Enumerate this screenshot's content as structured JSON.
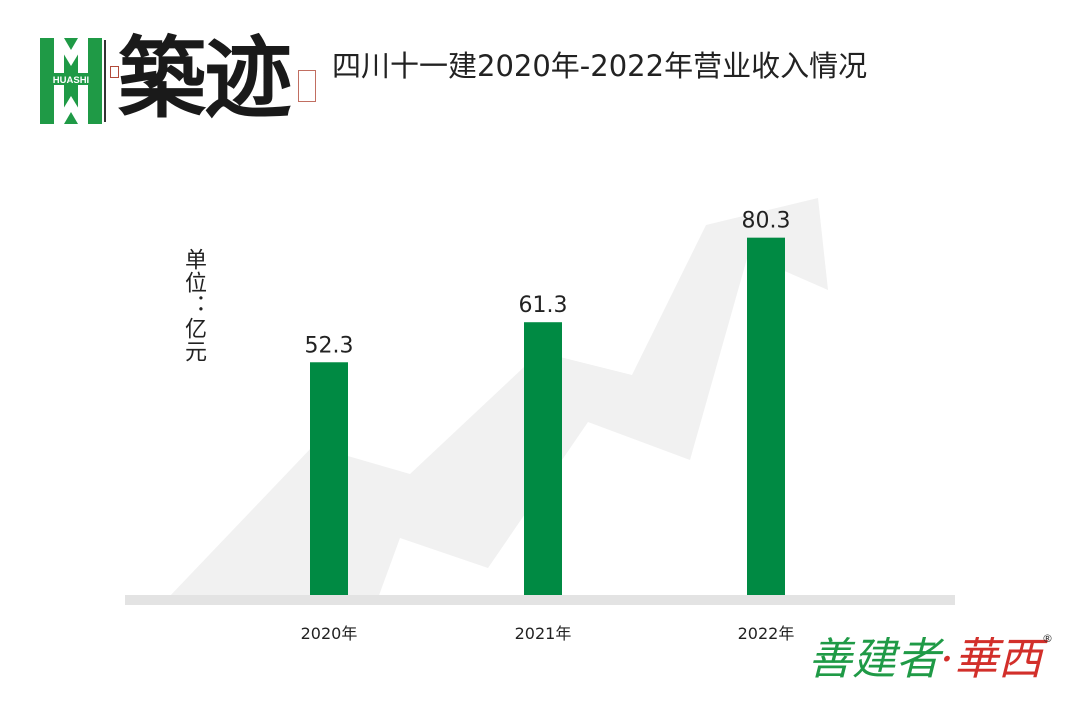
{
  "brand": {
    "logo_text": "HUASHI",
    "calligraphy": "築迹",
    "slogan_green": "善建者",
    "slogan_red": "·華西",
    "registered": "®"
  },
  "colors": {
    "bar": "#008a43",
    "arrow": "#f1f1f1",
    "baseline": "#e3e3e3",
    "logo": "#1f9a46"
  },
  "chart_data": {
    "type": "bar",
    "title": "四川十一建2020年-2022年营业收入情况",
    "unit_label": "单位：亿元",
    "categories": [
      "2020年",
      "2021年",
      "2022年"
    ],
    "values": [
      52.3,
      61.3,
      80.3
    ],
    "value_labels": [
      "52.3",
      "61.3",
      "80.3"
    ],
    "ylim": [
      0,
      100
    ],
    "grid": false,
    "legend": "none",
    "background_arrow": true
  }
}
